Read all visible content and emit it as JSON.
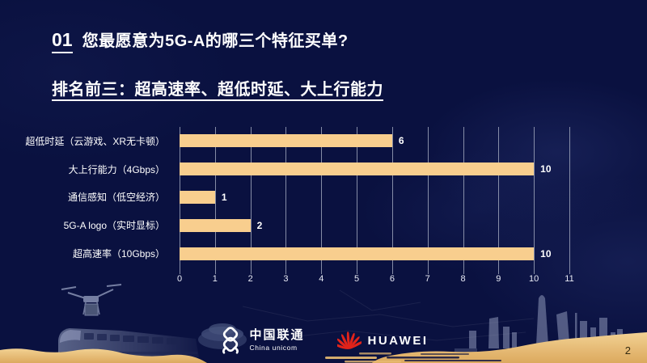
{
  "slide": {
    "page_number": "2",
    "header": {
      "index": "01",
      "title": "您最愿意为5G-A的哪三个特征买单?",
      "subtitle": "排名前三：超高速率、超低时延、大上行能力"
    }
  },
  "chart_data": {
    "type": "bar",
    "orientation": "horizontal",
    "categories": [
      "超低时延（云游戏、XR无卡顿）",
      "大上行能力（4Gbps）",
      "通信感知（低空经济）",
      "5G-A logo（实时显标）",
      "超高速率（10Gbps）"
    ],
    "values": [
      6,
      10,
      1,
      2,
      10
    ],
    "xlim": [
      0,
      11
    ],
    "x_ticks": [
      "0",
      "1",
      "2",
      "3",
      "4",
      "5",
      "6",
      "7",
      "8",
      "9",
      "10",
      "11"
    ],
    "grid": true,
    "legend": false,
    "bar_color": "#F8CE8E",
    "gridline_color": "#9BA2B8",
    "value_label_color": "#FFFFFF"
  },
  "footer": {
    "unicom_cn": "中国联通",
    "unicom_en": "China unicom",
    "huawei_label": "HUAWEI",
    "huawei_red": "#E2231A"
  },
  "colors": {
    "background": "#0A1140",
    "sand": "#E9BC72",
    "sand_light": "#F2D193",
    "text": "#FFFFFF"
  }
}
